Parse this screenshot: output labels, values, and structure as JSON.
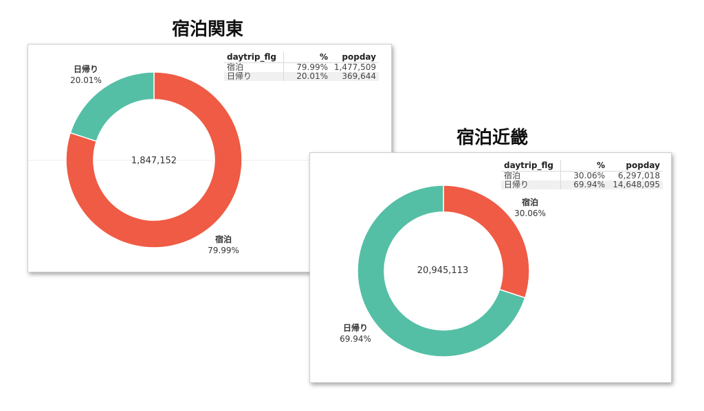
{
  "chart_data": [
    {
      "type": "pie",
      "title": "宿泊関東",
      "total_label": "1,847,152",
      "start_category": "宿泊",
      "slices": [
        {
          "label": "宿泊",
          "percent_label": "79.99%",
          "percent": 79.99,
          "value": 1477509,
          "color": "#ef5b44"
        },
        {
          "label": "日帰り",
          "percent_label": "20.01%",
          "percent": 20.01,
          "value": 369644,
          "color": "#54bfa5"
        }
      ],
      "table": {
        "headers": [
          "daytrip_flg",
          "%",
          "popday"
        ],
        "rows": [
          [
            "宿泊",
            "79.99%",
            "1,477,509"
          ],
          [
            "日帰り",
            "20.01%",
            "369,644"
          ]
        ]
      }
    },
    {
      "type": "pie",
      "title": "宿泊近畿",
      "total_label": "20,945,113",
      "start_category": "宿泊",
      "slices": [
        {
          "label": "宿泊",
          "percent_label": "30.06%",
          "percent": 30.06,
          "value": 6297018,
          "color": "#ef5b44"
        },
        {
          "label": "日帰り",
          "percent_label": "69.94%",
          "percent": 69.94,
          "value": 14648095,
          "color": "#54bfa5"
        }
      ],
      "table": {
        "headers": [
          "daytrip_flg",
          "%",
          "popday"
        ],
        "rows": [
          [
            "宿泊",
            "30.06%",
            "6,297,018"
          ],
          [
            "日帰り",
            "69.94%",
            "14,648,095"
          ]
        ]
      }
    }
  ]
}
